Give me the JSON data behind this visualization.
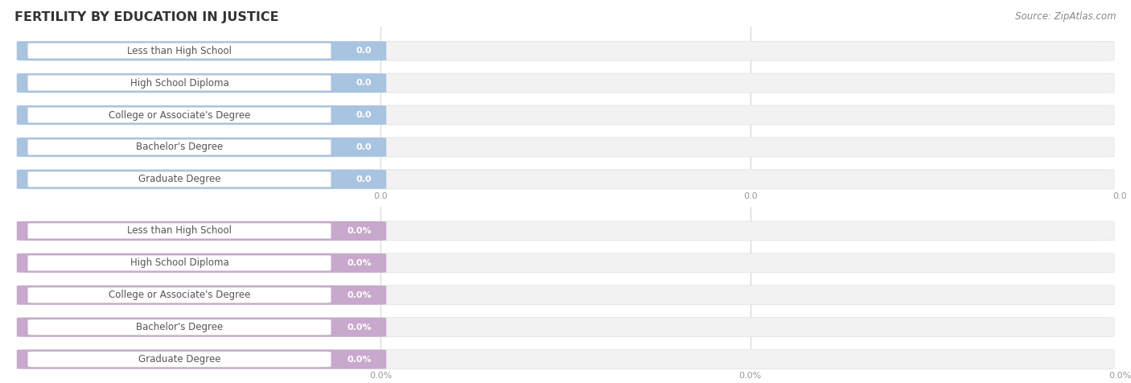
{
  "title": "FERTILITY BY EDUCATION IN JUSTICE",
  "source_text": "Source: ZipAtlas.com",
  "categories": [
    "Less than High School",
    "High School Diploma",
    "College or Associate's Degree",
    "Bachelor's Degree",
    "Graduate Degree"
  ],
  "top_values": [
    0.0,
    0.0,
    0.0,
    0.0,
    0.0
  ],
  "bottom_values": [
    0.0,
    0.0,
    0.0,
    0.0,
    0.0
  ],
  "top_bar_color": "#a8c4e0",
  "bottom_bar_color": "#c8a8cc",
  "bar_bg_color": "#f2f2f2",
  "bar_bg_edge_color": "#e0e0e0",
  "white_label_color": "#ffffff",
  "label_text_color": "#555555",
  "grid_color": "#d0d0d0",
  "tick_color": "#999999",
  "title_color": "#333333",
  "source_color": "#888888",
  "background_color": "#ffffff",
  "title_fontsize": 11.5,
  "label_fontsize": 8.5,
  "value_fontsize": 8.0,
  "tick_fontsize": 8.0,
  "source_fontsize": 8.5,
  "fig_width": 14.06,
  "fig_height": 4.76
}
